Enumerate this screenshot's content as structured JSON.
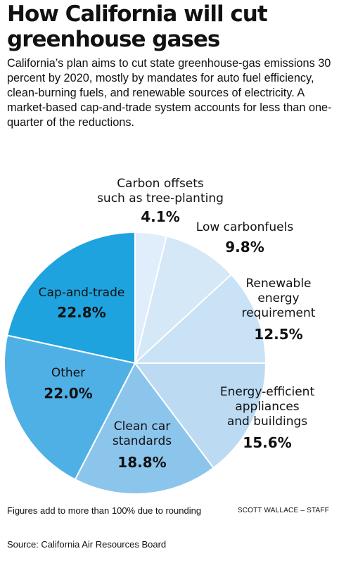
{
  "title_line1": "How California will cut",
  "title_line2": "greenhouse gases",
  "intro": "California’s plan aims to cut state greenhouse-gas emissions 30 percent by 2020, mostly by mandates for auto fuel efficiency, clean-burning fuels, and renewable sources of electricity. A market-based cap-and-trade system accounts for less than one-quarter of the reductions.",
  "note": "Figures add to more than 100% due to rounding",
  "credit": "SCOTT WALLACE – STAFF",
  "source": "Source: California Air Resources Board",
  "chart_data": {
    "type": "pie",
    "start": "12 o'clock, clockwise",
    "slices": [
      {
        "label_lines": [
          "Carbon offsets",
          "such as tree-planting"
        ],
        "value_text": "4.1%",
        "value": 4.1,
        "color": "#dfeefa"
      },
      {
        "label_lines": [
          "Low carbonfuels"
        ],
        "value_text": "9.8%",
        "value": 9.8,
        "color": "#d4e8f7"
      },
      {
        "label_lines": [
          "Renewable",
          "energy",
          "requirement"
        ],
        "value_text": "12.5%",
        "value": 12.5,
        "color": "#c9e2f5"
      },
      {
        "label_lines": [
          "Energy-efficient",
          "appliances",
          "and buildings"
        ],
        "value_text": "15.6%",
        "value": 15.6,
        "color": "#bcdbf3"
      },
      {
        "label_lines": [
          "Clean car",
          "standards"
        ],
        "value_text": "18.8%",
        "value": 18.8,
        "color": "#8cc5ec"
      },
      {
        "label_lines": [
          "Other"
        ],
        "value_text": "22.0%",
        "value": 22.0,
        "color": "#4fb0e6"
      },
      {
        "label_lines": [
          "Cap-and-trade"
        ],
        "value_text": "22.8%",
        "value": 22.8,
        "color": "#1ea3df"
      }
    ]
  }
}
